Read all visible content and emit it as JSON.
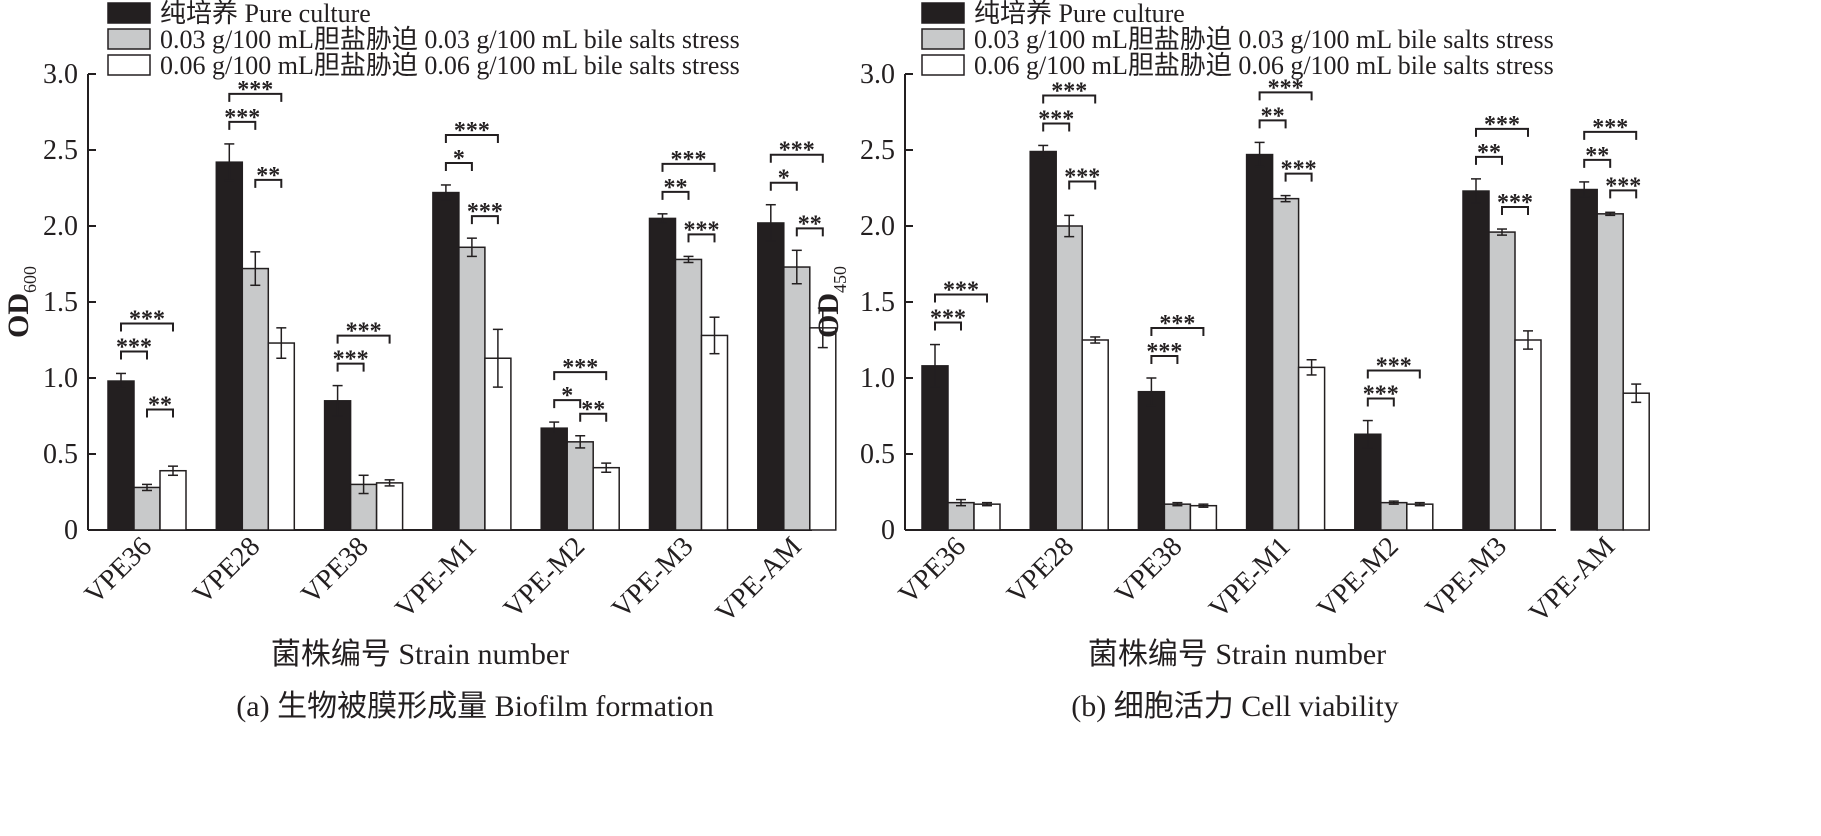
{
  "chart_data": [
    {
      "type": "bar",
      "panel": "a",
      "caption": "(a) 生物被膜形成量 Biofilm formation",
      "title": "",
      "xlabel": "菌株编号 Strain number",
      "ylabel": "OD",
      "ylabel_sub": "600",
      "ylim": [
        0,
        3.0
      ],
      "yticks": [
        0,
        0.5,
        1.0,
        1.5,
        2.0,
        2.5,
        3.0
      ],
      "ytick_labels": [
        "0",
        "0.5",
        "1.0",
        "1.5",
        "2.0",
        "2.5",
        "3.0"
      ],
      "grid": false,
      "legend_position": "top-left",
      "categories": [
        "VPE36",
        "VPE28",
        "VPE38",
        "VPE-M1",
        "VPE-M2",
        "VPE-M3",
        "VPE-AM"
      ],
      "series": [
        {
          "name": "纯培养 Pure culture",
          "color": "#231f20",
          "values": [
            0.98,
            2.42,
            0.85,
            2.22,
            0.67,
            2.05,
            2.02
          ],
          "errors": [
            0.05,
            0.12,
            0.1,
            0.05,
            0.04,
            0.03,
            0.12
          ]
        },
        {
          "name": "0.03 g/100 mL胆盐胁迫 0.03 g/100 mL bile salts stress",
          "color": "#c8c9ca",
          "values": [
            0.28,
            1.72,
            0.3,
            1.86,
            0.58,
            1.78,
            1.73
          ],
          "errors": [
            0.02,
            0.11,
            0.06,
            0.06,
            0.04,
            0.02,
            0.11
          ]
        },
        {
          "name": "0.06 g/100 mL胆盐胁迫 0.06 g/100 mL bile salts stress",
          "color": "#ffffff",
          "values": [
            0.39,
            1.23,
            0.31,
            1.13,
            0.41,
            1.28,
            1.33
          ],
          "errors": [
            0.03,
            0.1,
            0.02,
            0.19,
            0.03,
            0.12,
            0.13
          ]
        }
      ],
      "significance": [
        {
          "category": "VPE36",
          "pair": [
            0,
            1
          ],
          "label": "***"
        },
        {
          "category": "VPE36",
          "pair": [
            0,
            2
          ],
          "label": "***"
        },
        {
          "category": "VPE36",
          "pair": [
            1,
            2
          ],
          "label": "**"
        },
        {
          "category": "VPE28",
          "pair": [
            0,
            1
          ],
          "label": "***"
        },
        {
          "category": "VPE28",
          "pair": [
            0,
            2
          ],
          "label": "***"
        },
        {
          "category": "VPE28",
          "pair": [
            1,
            2
          ],
          "label": "**"
        },
        {
          "category": "VPE38",
          "pair": [
            0,
            1
          ],
          "label": "***"
        },
        {
          "category": "VPE38",
          "pair": [
            0,
            2
          ],
          "label": "***"
        },
        {
          "category": "VPE-M1",
          "pair": [
            0,
            1
          ],
          "label": "*"
        },
        {
          "category": "VPE-M1",
          "pair": [
            0,
            2
          ],
          "label": "***"
        },
        {
          "category": "VPE-M1",
          "pair": [
            1,
            2
          ],
          "label": "***"
        },
        {
          "category": "VPE-M2",
          "pair": [
            0,
            1
          ],
          "label": "*"
        },
        {
          "category": "VPE-M2",
          "pair": [
            0,
            2
          ],
          "label": "***"
        },
        {
          "category": "VPE-M2",
          "pair": [
            1,
            2
          ],
          "label": "**"
        },
        {
          "category": "VPE-M3",
          "pair": [
            0,
            1
          ],
          "label": "**"
        },
        {
          "category": "VPE-M3",
          "pair": [
            0,
            2
          ],
          "label": "***"
        },
        {
          "category": "VPE-M3",
          "pair": [
            1,
            2
          ],
          "label": "***"
        },
        {
          "category": "VPE-AM",
          "pair": [
            0,
            1
          ],
          "label": "*"
        },
        {
          "category": "VPE-AM",
          "pair": [
            0,
            2
          ],
          "label": "***"
        },
        {
          "category": "VPE-AM",
          "pair": [
            1,
            2
          ],
          "label": "**"
        }
      ]
    },
    {
      "type": "bar",
      "panel": "b",
      "caption": "(b) 细胞活力 Cell viability",
      "title": "",
      "xlabel": "菌株编号 Strain number",
      "ylabel": "OD",
      "ylabel_sub": "450",
      "ylim": [
        0,
        3.0
      ],
      "yticks": [
        0,
        0.5,
        1.0,
        1.5,
        2.0,
        2.5,
        3.0
      ],
      "ytick_labels": [
        "0",
        "0.5",
        "1.0",
        "1.5",
        "2.0",
        "2.5",
        "3.0"
      ],
      "grid": false,
      "legend_position": "top-left",
      "categories": [
        "VPE36",
        "VPE28",
        "VPE38",
        "VPE-M1",
        "VPE-M2",
        "VPE-M3",
        "VPE-AM"
      ],
      "series": [
        {
          "name": "纯培养 Pure culture",
          "color": "#231f20",
          "values": [
            1.08,
            2.49,
            0.91,
            2.47,
            0.63,
            2.23,
            2.24
          ],
          "errors": [
            0.14,
            0.04,
            0.09,
            0.08,
            0.09,
            0.08,
            0.05
          ]
        },
        {
          "name": "0.03 g/100 mL胆盐胁迫 0.03 g/100 mL bile salts stress",
          "color": "#c8c9ca",
          "values": [
            0.18,
            2.0,
            0.17,
            2.18,
            0.18,
            1.96,
            2.08
          ],
          "errors": [
            0.02,
            0.07,
            0.01,
            0.02,
            0.01,
            0.02,
            0.01
          ]
        },
        {
          "name": "0.06 g/100 mL胆盐胁迫 0.06 g/100 mL bile salts stress",
          "color": "#ffffff",
          "values": [
            0.17,
            1.25,
            0.16,
            1.07,
            0.17,
            1.25,
            0.9
          ],
          "errors": [
            0.01,
            0.02,
            0.01,
            0.05,
            0.01,
            0.06,
            0.06
          ]
        }
      ],
      "significance": [
        {
          "category": "VPE36",
          "pair": [
            0,
            1
          ],
          "label": "***"
        },
        {
          "category": "VPE36",
          "pair": [
            0,
            2
          ],
          "label": "***"
        },
        {
          "category": "VPE28",
          "pair": [
            0,
            1
          ],
          "label": "***"
        },
        {
          "category": "VPE28",
          "pair": [
            0,
            2
          ],
          "label": "***"
        },
        {
          "category": "VPE28",
          "pair": [
            1,
            2
          ],
          "label": "***"
        },
        {
          "category": "VPE38",
          "pair": [
            0,
            1
          ],
          "label": "***"
        },
        {
          "category": "VPE38",
          "pair": [
            0,
            2
          ],
          "label": "***"
        },
        {
          "category": "VPE-M1",
          "pair": [
            0,
            1
          ],
          "label": "**"
        },
        {
          "category": "VPE-M1",
          "pair": [
            0,
            2
          ],
          "label": "***"
        },
        {
          "category": "VPE-M1",
          "pair": [
            1,
            2
          ],
          "label": "***"
        },
        {
          "category": "VPE-M2",
          "pair": [
            0,
            1
          ],
          "label": "***"
        },
        {
          "category": "VPE-M2",
          "pair": [
            0,
            2
          ],
          "label": "***"
        },
        {
          "category": "VPE-M3",
          "pair": [
            0,
            1
          ],
          "label": "**"
        },
        {
          "category": "VPE-M3",
          "pair": [
            0,
            2
          ],
          "label": "***"
        },
        {
          "category": "VPE-M3",
          "pair": [
            1,
            2
          ],
          "label": "***"
        },
        {
          "category": "VPE-AM",
          "pair": [
            0,
            1
          ],
          "label": "**"
        },
        {
          "category": "VPE-AM",
          "pair": [
            0,
            2
          ],
          "label": "***"
        },
        {
          "category": "VPE-AM",
          "pair": [
            1,
            2
          ],
          "label": "***"
        }
      ]
    }
  ]
}
